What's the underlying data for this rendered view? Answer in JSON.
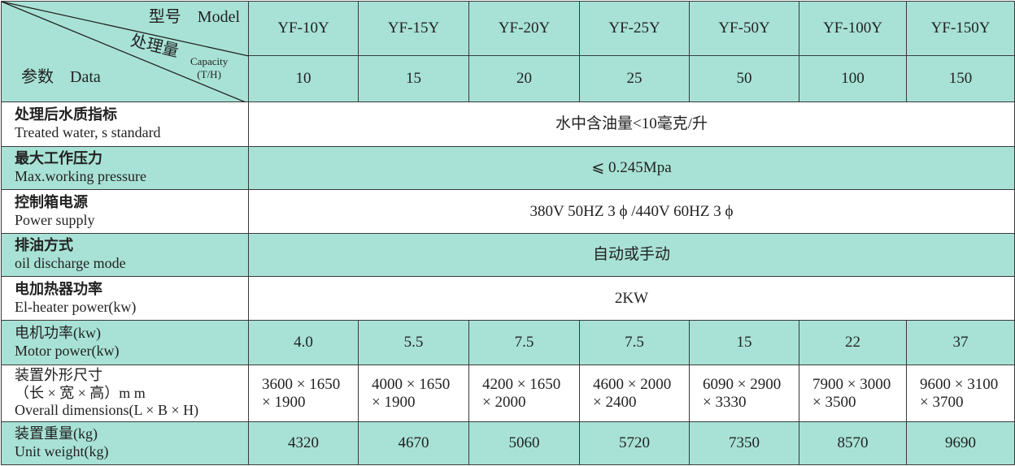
{
  "header": {
    "model_label": "型号　Model",
    "capacity_label_cn": "处理量",
    "capacity_label_en": "Capacity",
    "capacity_unit": "(T/H)",
    "data_label": "参数　Data",
    "models": [
      "YF-10Y",
      "YF-15Y",
      "YF-20Y",
      "YF-25Y",
      "YF-50Y",
      "YF-100Y",
      "YF-150Y"
    ],
    "capacities": [
      "10",
      "15",
      "20",
      "25",
      "50",
      "100",
      "150"
    ]
  },
  "rows": [
    {
      "label": [
        "处理后水质指标",
        "Treated  water, s  standard"
      ],
      "span": "水中含油量<10毫克/升",
      "bg": "white"
    },
    {
      "label": [
        "最大工作压力",
        "Max.working  pressure"
      ],
      "span": "⩽ 0.245Mpa",
      "bg": "teal"
    },
    {
      "label": [
        "控制箱电源",
        "Power  supply"
      ],
      "span": "380V  50HZ  3 ϕ /440V  60HZ  3 ϕ",
      "bg": "white"
    },
    {
      "label": [
        "排油方式",
        "oil  discharge  mode"
      ],
      "span": "自动或手动",
      "bg": "teal"
    },
    {
      "label": [
        "电加热器功率",
        "El-heater  power(kw)"
      ],
      "span": "2KW",
      "bg": "white"
    },
    {
      "label": [
        "电机功率(kw)",
        "Motor  power(kw)"
      ],
      "values": [
        "4.0",
        "5.5",
        "7.5",
        "7.5",
        "15",
        "22",
        "37"
      ],
      "bg": "teal"
    },
    {
      "label": [
        "装置外形尺寸",
        "（长 × 宽 × 高）m  m",
        "Overall  dimensions(L × B × H)"
      ],
      "values": [
        [
          "3600 × 1650",
          "× 1900"
        ],
        [
          "4000 × 1650",
          "× 1900"
        ],
        [
          "4200 × 1650",
          "× 2000"
        ],
        [
          "4600 × 2000",
          "× 2400"
        ],
        [
          "6090 × 2900",
          "× 3330"
        ],
        [
          "7900 × 3000",
          "× 3500"
        ],
        [
          "9600 × 3100",
          "× 3700"
        ]
      ],
      "bg": "white"
    },
    {
      "label": [
        "装置重量(kg)",
        "Unit  weight(kg)"
      ],
      "values": [
        "4320",
        "4670",
        "5060",
        "5720",
        "7350",
        "8570",
        "9690"
      ],
      "bg": "teal"
    }
  ],
  "colors": {
    "teal": "#a8e2d6",
    "border": "#3a3a3a"
  }
}
